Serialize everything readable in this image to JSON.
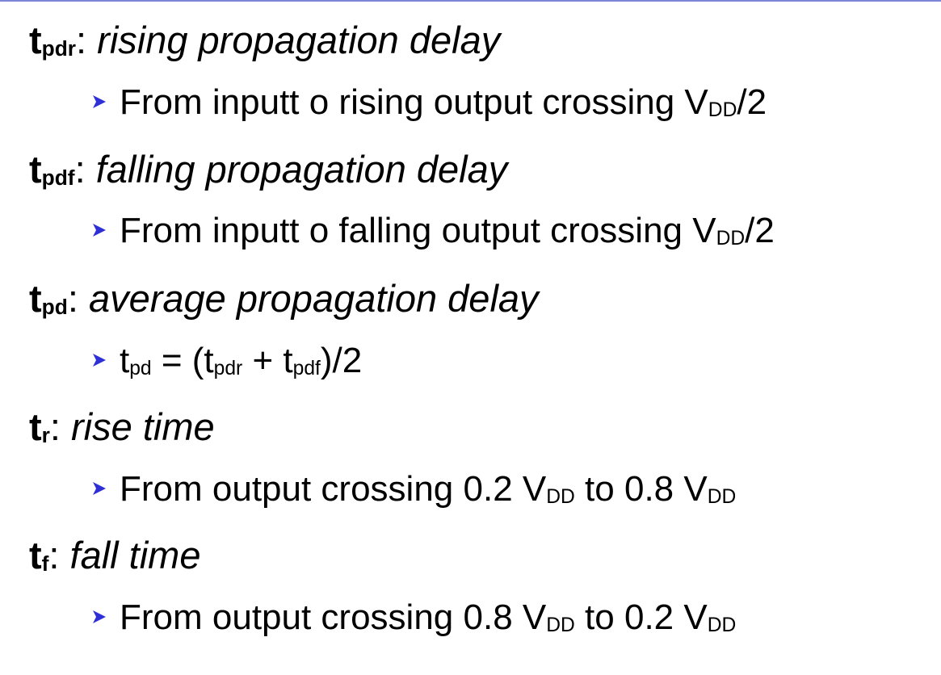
{
  "colors": {
    "bullet": "#2f2fd6",
    "top_rule": "#7d86d6",
    "text": "#000000"
  },
  "bullet_icon": "triangle-right-icon",
  "items": [
    {
      "symbol": {
        "main": "t",
        "sub": "pdr"
      },
      "colon": ":",
      "definition": "rising propagation delay",
      "detail": {
        "before": "From inputt o rising output crossing V",
        "sub1": "DD",
        "after": "/2"
      }
    },
    {
      "symbol": {
        "main": "t",
        "sub": "pdf"
      },
      "colon": ":",
      "definition": "falling propagation delay",
      "detail": {
        "before": "From inputt o falling output crossing V",
        "sub1": "DD",
        "after": "/2"
      }
    },
    {
      "symbol": {
        "main": "t",
        "sub": "pd"
      },
      "colon": ":",
      "definition": "average propagation delay",
      "formula": {
        "p1": "t",
        "s1": "pd",
        "p2": " = (t",
        "s2": "pdr",
        "p3": " + t",
        "s3": "pdf",
        "p4": ")/2"
      }
    },
    {
      "symbol": {
        "main": "t",
        "sub": "r"
      },
      "colon": ":",
      "definition": "rise time",
      "detail": {
        "before": "From output crossing 0.2 V",
        "sub1": "DD",
        "middle": " to 0.8 V",
        "sub2": "DD"
      }
    },
    {
      "symbol": {
        "main": "t",
        "sub": "f"
      },
      "colon": ":",
      "definition": "fall time",
      "detail": {
        "before": "From output crossing 0.8 V",
        "sub1": "DD",
        "middle": " to 0.2 V",
        "sub2": "DD"
      }
    }
  ]
}
